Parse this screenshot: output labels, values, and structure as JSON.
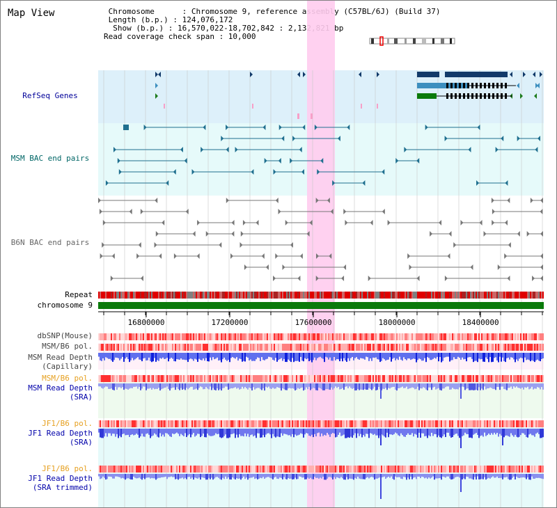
{
  "page": {
    "title": "Map View"
  },
  "info": {
    "chromosome": " Chromosome      : Chromosome 9, reference assembly (C57BL/6J) (Build 37)",
    "length": " Length (b.p.) : 124,076,172",
    "show": "  Show (b.p.) : 16,570,022-18,702,842 : 2,132,821 bp",
    "coverage": "Read coverage check span : 10,000"
  },
  "tracks": {
    "refseq": "RefSeq Genes",
    "msm_bac": "MSM BAC end pairs",
    "b6n_bac": "B6N BAC end pairs",
    "repeat": "Repeat",
    "chrom": "chromosome 9",
    "dbsnp": "dbSNP(Mouse)",
    "msm_pol": "MSM/B6 pol.",
    "msm_cap_1": "MSM Read Depth",
    "msm_cap_2": "(Capillary)",
    "msm_pol2": "MSM/B6 pol.",
    "msm_sra_1": "MSM Read Depth",
    "msm_sra_2": "(SRA)",
    "jf1_pol": "JF1/B6 pol.",
    "jf1_sra_1": "JF1 Read Depth",
    "jf1_sra_2": "(SRA)",
    "jf1_pol2": "JF1/B6 pol.",
    "jf1_trim_1": "JF1 Read Depth",
    "jf1_trim_2": "(SRA trimmed)"
  },
  "axis": {
    "ticks": [
      "16800000",
      "17200000",
      "17600000",
      "18000000",
      "18400000"
    ],
    "values": [
      16800000,
      17200000,
      17600000,
      18000000,
      18400000
    ],
    "range": [
      16570022,
      18702842
    ]
  },
  "colors": {
    "refseq_label": "#000099",
    "msm_label": "#006666",
    "b6n_label": "#666666",
    "gold_label": "#e6a020",
    "blue_label": "#0000aa",
    "highlight": "#ffccee"
  }
}
